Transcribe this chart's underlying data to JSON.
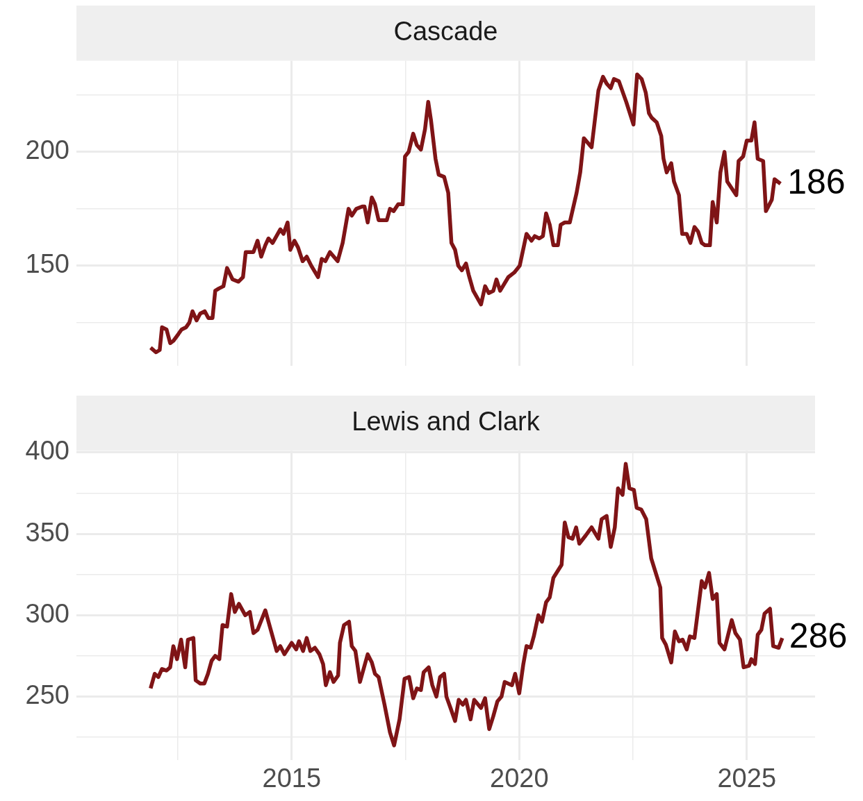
{
  "chart_data": [
    {
      "type": "line",
      "title": "Cascade",
      "tick_labels": "y",
      "grid": true,
      "x": [
        2011.9,
        2012.02,
        2012.1,
        2012.15,
        2012.25,
        2012.33,
        2012.4,
        2012.51,
        2012.58,
        2012.68,
        2012.75,
        2012.82,
        2012.91,
        2012.99,
        2013.09,
        2013.17,
        2013.26,
        2013.32,
        2013.4,
        2013.5,
        2013.58,
        2013.7,
        2013.83,
        2013.93,
        2013.99,
        2014.16,
        2014.25,
        2014.33,
        2014.42,
        2014.49,
        2014.58,
        2014.75,
        2014.82,
        2014.91,
        2014.97,
        2015.06,
        2015.14,
        2015.24,
        2015.33,
        2015.43,
        2015.58,
        2015.66,
        2015.74,
        2015.84,
        2016.01,
        2016.12,
        2016.25,
        2016.32,
        2016.42,
        2016.55,
        2016.6,
        2016.67,
        2016.76,
        2016.83,
        2016.91,
        2017.09,
        2017.16,
        2017.24,
        2017.34,
        2017.44,
        2017.49,
        2017.57,
        2017.67,
        2017.75,
        2017.84,
        2017.93,
        2018.0,
        2018.06,
        2018.16,
        2018.23,
        2018.35,
        2018.44,
        2018.51,
        2018.59,
        2018.66,
        2018.74,
        2018.83,
        2018.89,
        2018.99,
        2019.16,
        2019.25,
        2019.33,
        2019.43,
        2019.5,
        2019.58,
        2019.76,
        2019.89,
        2020.01,
        2020.16,
        2020.27,
        2020.34,
        2020.44,
        2020.52,
        2020.59,
        2020.67,
        2020.75,
        2020.85,
        2020.91,
        2021.0,
        2021.11,
        2021.26,
        2021.34,
        2021.42,
        2021.59,
        2021.74,
        2021.84,
        2021.92,
        2022.01,
        2022.08,
        2022.19,
        2022.35,
        2022.51,
        2022.59,
        2022.69,
        2022.78,
        2022.85,
        2022.91,
        2023.02,
        2023.12,
        2023.17,
        2023.24,
        2023.34,
        2023.4,
        2023.51,
        2023.58,
        2023.68,
        2023.76,
        2023.85,
        2023.93,
        2024.01,
        2024.08,
        2024.19,
        2024.25,
        2024.34,
        2024.42,
        2024.51,
        2024.57,
        2024.77,
        2024.82,
        2024.92,
        2025.0,
        2025.1,
        2025.17,
        2025.24,
        2025.36,
        2025.42,
        2025.55,
        2025.61,
        2025.74
      ],
      "series": [
        {
          "color": "#7f1416",
          "values": [
            114,
            112,
            113,
            123,
            122,
            116,
            117,
            120,
            122,
            123,
            125,
            130,
            126,
            129,
            130,
            127,
            127,
            139,
            140,
            141,
            149,
            144,
            143,
            145,
            156,
            156,
            161,
            154,
            159,
            162,
            160,
            166,
            164,
            169,
            157,
            161,
            158,
            152,
            154,
            150,
            145,
            153,
            152,
            156,
            152,
            160,
            175,
            172,
            175,
            176,
            176,
            169,
            180,
            177,
            170,
            170,
            175,
            174,
            177,
            177,
            198,
            200,
            208,
            203,
            201,
            210,
            222,
            214,
            197,
            190,
            189,
            182,
            160,
            157,
            150,
            148,
            151,
            146,
            139,
            133,
            141,
            138,
            139,
            144,
            139,
            145,
            147,
            150,
            164,
            161,
            163,
            162,
            163,
            173,
            168,
            159,
            159,
            168,
            169,
            169,
            182,
            191,
            206,
            202,
            227,
            233,
            230,
            228,
            232,
            231,
            222,
            212,
            234,
            232,
            226,
            217,
            215,
            213,
            207,
            197,
            191,
            195,
            187,
            181,
            164,
            164,
            160,
            167,
            165,
            160,
            159,
            159,
            178,
            169,
            191,
            200,
            187,
            181,
            196,
            198,
            205,
            205,
            213,
            197,
            196,
            174,
            179,
            188,
            186
          ]
        }
      ],
      "xlim": [
        2010.27,
        2026.5
      ],
      "xticks": [
        {
          "value": 2012.5,
          "label": null
        },
        2015,
        {
          "value": 2017.5,
          "label": null
        },
        2020,
        {
          "value": 2022.5,
          "label": null
        },
        2025
      ],
      "ylim": [
        106,
        240
      ],
      "yticks": [
        {
          "value": 125,
          "label": null
        },
        150,
        {
          "value": 175,
          "label": null
        },
        200,
        {
          "value": 225,
          "label": null
        }
      ],
      "annotations": [
        {
          "text": "186",
          "x": 2025.74,
          "y": 186
        }
      ]
    },
    {
      "type": "line",
      "title": "Lewis and Clark",
      "grid": true,
      "x": [
        2011.9,
        2011.99,
        2012.07,
        2012.15,
        2012.25,
        2012.33,
        2012.4,
        2012.48,
        2012.57,
        2012.66,
        2012.72,
        2012.84,
        2012.89,
        2012.99,
        2013.08,
        2013.16,
        2013.24,
        2013.32,
        2013.41,
        2013.48,
        2013.58,
        2013.67,
        2013.75,
        2013.84,
        2013.98,
        2014.08,
        2014.16,
        2014.25,
        2014.42,
        2014.54,
        2014.67,
        2014.75,
        2014.84,
        2015.0,
        2015.1,
        2015.16,
        2015.25,
        2015.33,
        2015.41,
        2015.51,
        2015.61,
        2015.69,
        2015.75,
        2015.84,
        2015.92,
        2016.02,
        2016.06,
        2016.15,
        2016.26,
        2016.32,
        2016.4,
        2016.5,
        2016.67,
        2016.76,
        2016.83,
        2016.91,
        2017.04,
        2017.16,
        2017.25,
        2017.37,
        2017.48,
        2017.58,
        2017.67,
        2017.75,
        2017.84,
        2017.9,
        2018.01,
        2018.09,
        2018.18,
        2018.26,
        2018.35,
        2018.4,
        2018.49,
        2018.59,
        2018.67,
        2018.76,
        2018.83,
        2018.93,
        2019.01,
        2019.16,
        2019.25,
        2019.34,
        2019.43,
        2019.52,
        2019.61,
        2019.68,
        2019.84,
        2019.91,
        2020.0,
        2020.09,
        2020.16,
        2020.25,
        2020.32,
        2020.42,
        2020.5,
        2020.59,
        2020.67,
        2020.75,
        2020.93,
        2021.0,
        2021.08,
        2021.17,
        2021.25,
        2021.32,
        2021.46,
        2021.59,
        2021.74,
        2021.81,
        2021.92,
        2022.01,
        2022.1,
        2022.17,
        2022.27,
        2022.34,
        2022.42,
        2022.52,
        2022.58,
        2022.68,
        2022.79,
        2022.9,
        2023.1,
        2023.14,
        2023.22,
        2023.34,
        2023.42,
        2023.51,
        2023.59,
        2023.68,
        2023.75,
        2023.85,
        2024.01,
        2024.08,
        2024.17,
        2024.25,
        2024.34,
        2024.4,
        2024.51,
        2024.67,
        2024.75,
        2024.85,
        2024.93,
        2025.05,
        2025.1,
        2025.18,
        2025.24,
        2025.32,
        2025.39,
        2025.51,
        2025.58,
        2025.7,
        2025.78
      ],
      "series": [
        {
          "color": "#7f1416",
          "values": [
            255,
            264,
            262,
            267,
            266,
            268,
            281,
            273,
            285,
            268,
            285,
            286,
            260,
            258,
            258,
            264,
            272,
            275,
            273,
            294,
            293,
            313,
            302,
            307,
            300,
            302,
            289,
            291,
            303,
            291,
            278,
            281,
            276,
            283,
            279,
            284,
            278,
            286,
            278,
            280,
            276,
            270,
            257,
            265,
            259,
            263,
            283,
            294,
            296,
            281,
            278,
            259,
            276,
            271,
            264,
            262,
            245,
            228,
            220,
            236,
            261,
            262,
            249,
            255,
            254,
            265,
            268,
            257,
            250,
            262,
            264,
            250,
            243,
            235,
            248,
            245,
            248,
            236,
            248,
            243,
            249,
            230,
            238,
            247,
            250,
            259,
            257,
            264,
            252,
            270,
            281,
            280,
            287,
            300,
            296,
            308,
            311,
            323,
            331,
            357,
            348,
            347,
            354,
            344,
            349,
            354,
            347,
            359,
            361,
            342,
            354,
            378,
            374,
            393,
            378,
            377,
            366,
            365,
            359,
            335,
            317,
            286,
            282,
            271,
            290,
            284,
            285,
            279,
            287,
            286,
            321,
            317,
            326,
            310,
            313,
            283,
            279,
            297,
            289,
            285,
            268,
            269,
            273,
            270,
            288,
            291,
            301,
            304,
            281,
            280,
            286
          ]
        }
      ],
      "xlim": [
        2010.27,
        2026.5
      ],
      "xticks": [
        {
          "value": 2012.5,
          "label": null
        },
        2015,
        {
          "value": 2017.5,
          "label": null
        },
        2020,
        {
          "value": 2022.5,
          "label": null
        },
        2025
      ],
      "ylim": [
        211,
        401
      ],
      "yticks": [
        {
          "value": 225,
          "label": null
        },
        250,
        {
          "value": 275,
          "label": null
        },
        300,
        {
          "value": 325,
          "label": null
        },
        350,
        {
          "value": 375,
          "label": null
        },
        400
      ],
      "annotations": [
        {
          "text": "286",
          "x": 2025.78,
          "y": 286
        }
      ]
    }
  ]
}
